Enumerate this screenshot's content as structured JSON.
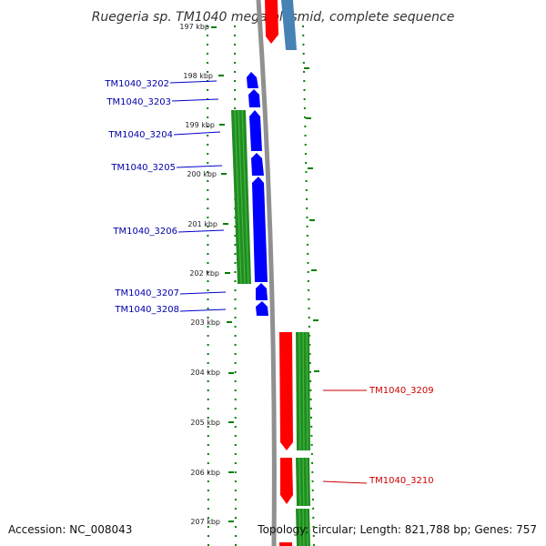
{
  "title": "Ruegeria sp. TM1040 mega plasmid, complete sequence",
  "footer": {
    "accession": "Accession: NC_008043",
    "summary": "Topology: circular; Length: 821,788 bp; Genes: 757"
  },
  "colors": {
    "left_strand_gene": "#0000ff",
    "right_strand_gene": "#ff0000",
    "blue_gene_top": "#4682b4",
    "green_feature": "#228b22",
    "tick_mark": "#008000",
    "backbone": "#909090"
  },
  "ticks": [
    {
      "label": "197 kbp",
      "kbp": 197
    },
    {
      "label": "198 kbp",
      "kbp": 198
    },
    {
      "label": "199 kbp",
      "kbp": 199
    },
    {
      "label": "200 kbp",
      "kbp": 200
    },
    {
      "label": "201 kbp",
      "kbp": 201
    },
    {
      "label": "202 kbp",
      "kbp": 202
    },
    {
      "label": "203 kbp",
      "kbp": 203
    },
    {
      "label": "204 kbp",
      "kbp": 204
    },
    {
      "label": "205 kbp",
      "kbp": 205
    },
    {
      "label": "206 kbp",
      "kbp": 206
    },
    {
      "label": "207 kbp",
      "kbp": 207
    }
  ],
  "genes": [
    {
      "label": "TM1040_3202",
      "strand": "left"
    },
    {
      "label": "TM1040_3203",
      "strand": "left"
    },
    {
      "label": "TM1040_3204",
      "strand": "left"
    },
    {
      "label": "TM1040_3205",
      "strand": "left"
    },
    {
      "label": "TM1040_3206",
      "strand": "left"
    },
    {
      "label": "TM1040_3207",
      "strand": "left"
    },
    {
      "label": "TM1040_3208",
      "strand": "left"
    },
    {
      "label": "TM1040_3209",
      "strand": "right"
    },
    {
      "label": "TM1040_3210",
      "strand": "right"
    }
  ]
}
